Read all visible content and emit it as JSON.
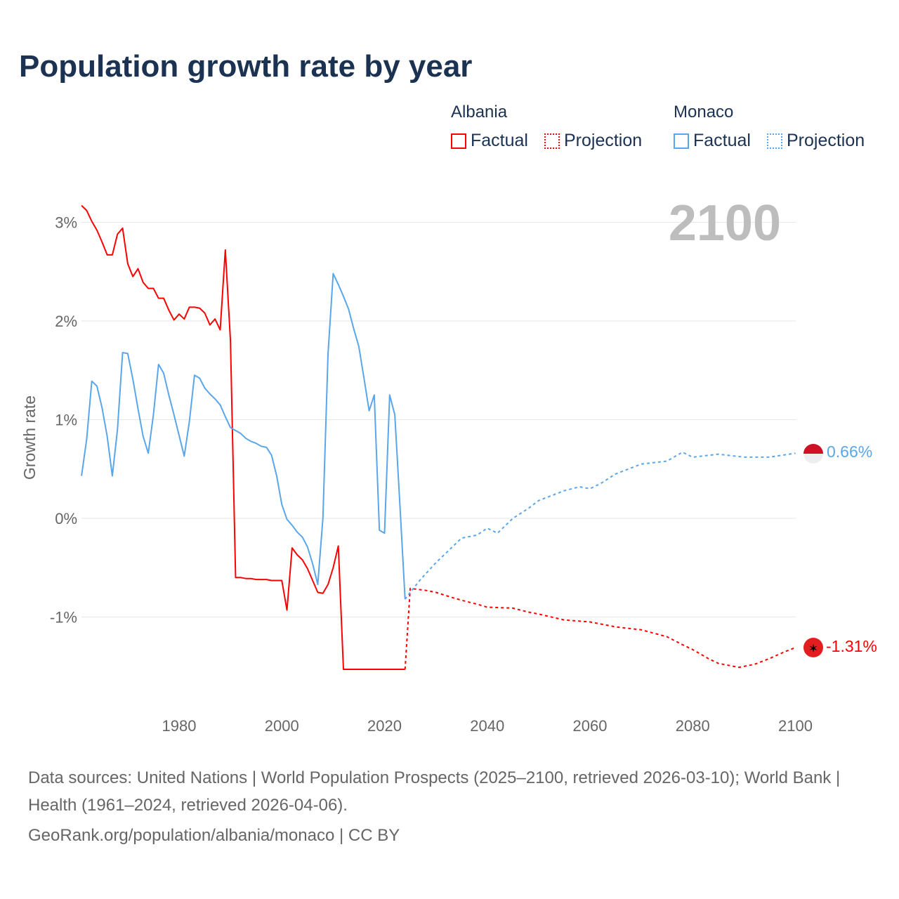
{
  "title": "Population growth rate by year",
  "legend": {
    "groups": [
      {
        "name": "Albania",
        "items": [
          "Factual",
          "Projection"
        ],
        "color": "#ff0000"
      },
      {
        "name": "Monaco",
        "items": [
          "Factual",
          "Projection"
        ],
        "color": "#5aa6ea"
      }
    ]
  },
  "year_label": "2100",
  "end_labels": {
    "monaco": "0.66%",
    "albania": "-1.31%"
  },
  "footer": {
    "sources": "Data sources: United Nations | World Population Prospects (2025–2100, retrieved 2026-03-10); World Bank | Health (1961–2024, retrieved 2026-04-06).",
    "credit": "GeoRank.org/population/albania/monaco | CC BY"
  },
  "chart_data": {
    "type": "line",
    "title": "Population growth rate by year",
    "xlabel": "",
    "ylabel": "Growth rate",
    "xlim": [
      1961,
      2100
    ],
    "ylim": [
      -1.8,
      3.3
    ],
    "xticks": [
      1980,
      2000,
      2020,
      2040,
      2060,
      2080,
      2100
    ],
    "yticks": [
      {
        "v": 3,
        "label": "3%"
      },
      {
        "v": 2,
        "label": "2%"
      },
      {
        "v": 1,
        "label": "1%"
      },
      {
        "v": 0,
        "label": "0%"
      },
      {
        "v": -1,
        "label": "-1%"
      }
    ],
    "series": [
      {
        "name": "Albania Factual",
        "color": "#ff0000",
        "dashed": false,
        "x": [
          1961,
          1962,
          1963,
          1964,
          1965,
          1966,
          1967,
          1968,
          1969,
          1970,
          1971,
          1972,
          1973,
          1974,
          1975,
          1976,
          1977,
          1978,
          1979,
          1980,
          1981,
          1982,
          1983,
          1984,
          1985,
          1986,
          1987,
          1988,
          1989,
          1990,
          1991,
          1992,
          1993,
          1994,
          1995,
          1996,
          1997,
          1998,
          1999,
          2000,
          2001,
          2002,
          2003,
          2004,
          2005,
          2006,
          2007,
          2008,
          2009,
          2010,
          2011,
          2012,
          2024
        ],
        "y": [
          3.17,
          3.12,
          3.01,
          2.92,
          2.8,
          2.67,
          2.67,
          2.88,
          2.94,
          2.58,
          2.45,
          2.53,
          2.39,
          2.33,
          2.33,
          2.23,
          2.23,
          2.11,
          2.01,
          2.07,
          2.02,
          2.14,
          2.14,
          2.13,
          2.08,
          1.96,
          2.02,
          1.91,
          2.72,
          1.8,
          -0.6,
          -0.6,
          -0.61,
          -0.61,
          -0.62,
          -0.62,
          -0.62,
          -0.63,
          -0.63,
          -0.63,
          -0.93,
          -0.3,
          -0.37,
          -0.42,
          -0.51,
          -0.63,
          -0.75,
          -0.76,
          -0.67,
          -0.5,
          -0.28,
          -1.53,
          -1.53
        ]
      },
      {
        "name": "Albania Projection",
        "color": "#ff0000",
        "dashed": true,
        "x": [
          2024,
          2025,
          2028,
          2030,
          2033,
          2035,
          2038,
          2040,
          2045,
          2048,
          2050,
          2055,
          2060,
          2065,
          2070,
          2075,
          2078,
          2080,
          2083,
          2085,
          2089,
          2092,
          2095,
          2098,
          2100
        ],
        "y": [
          -1.53,
          -0.71,
          -0.73,
          -0.75,
          -0.8,
          -0.83,
          -0.87,
          -0.9,
          -0.91,
          -0.95,
          -0.97,
          -1.03,
          -1.05,
          -1.1,
          -1.13,
          -1.2,
          -1.28,
          -1.33,
          -1.42,
          -1.47,
          -1.51,
          -1.48,
          -1.42,
          -1.35,
          -1.31
        ]
      },
      {
        "name": "Monaco Factual",
        "color": "#5aa6ea",
        "dashed": false,
        "x": [
          1961,
          1962,
          1963,
          1964,
          1965,
          1966,
          1967,
          1968,
          1969,
          1970,
          1971,
          1972,
          1973,
          1974,
          1975,
          1976,
          1977,
          1978,
          1979,
          1980,
          1981,
          1982,
          1983,
          1984,
          1985,
          1986,
          1987,
          1988,
          1989,
          1990,
          1991,
          1992,
          1993,
          1994,
          1995,
          1996,
          1997,
          1998,
          1999,
          2000,
          2001,
          2002,
          2003,
          2004,
          2005,
          2006,
          2007,
          2008,
          2009,
          2010,
          2011,
          2012,
          2013,
          2014,
          2015,
          2016,
          2017,
          2018,
          2019,
          2020,
          2021,
          2022,
          2023,
          2024
        ],
        "y": [
          0.43,
          0.8,
          1.39,
          1.34,
          1.12,
          0.83,
          0.43,
          0.9,
          1.68,
          1.67,
          1.41,
          1.11,
          0.83,
          0.66,
          1.05,
          1.56,
          1.47,
          1.25,
          1.05,
          0.84,
          0.63,
          0.98,
          1.45,
          1.42,
          1.32,
          1.26,
          1.21,
          1.15,
          1.03,
          0.92,
          0.89,
          0.86,
          0.81,
          0.78,
          0.76,
          0.73,
          0.72,
          0.64,
          0.43,
          0.14,
          -0.01,
          -0.07,
          -0.14,
          -0.19,
          -0.29,
          -0.46,
          -0.67,
          0.0,
          1.67,
          2.48,
          2.37,
          2.25,
          2.12,
          1.92,
          1.74,
          1.42,
          1.09,
          1.25,
          -0.12,
          -0.15,
          1.25,
          1.05,
          0.13,
          -0.82
        ]
      },
      {
        "name": "Monaco Projection",
        "color": "#5aa6ea",
        "dashed": true,
        "x": [
          2024,
          2025,
          2027,
          2030,
          2033,
          2035,
          2038,
          2040,
          2042,
          2045,
          2048,
          2050,
          2055,
          2058,
          2060,
          2062,
          2065,
          2070,
          2075,
          2078,
          2080,
          2085,
          2090,
          2095,
          2100
        ],
        "y": [
          -0.82,
          -0.75,
          -0.62,
          -0.45,
          -0.3,
          -0.2,
          -0.17,
          -0.1,
          -0.15,
          0.0,
          0.1,
          0.18,
          0.28,
          0.32,
          0.3,
          0.35,
          0.45,
          0.55,
          0.58,
          0.67,
          0.62,
          0.65,
          0.62,
          0.62,
          0.66
        ]
      }
    ]
  }
}
